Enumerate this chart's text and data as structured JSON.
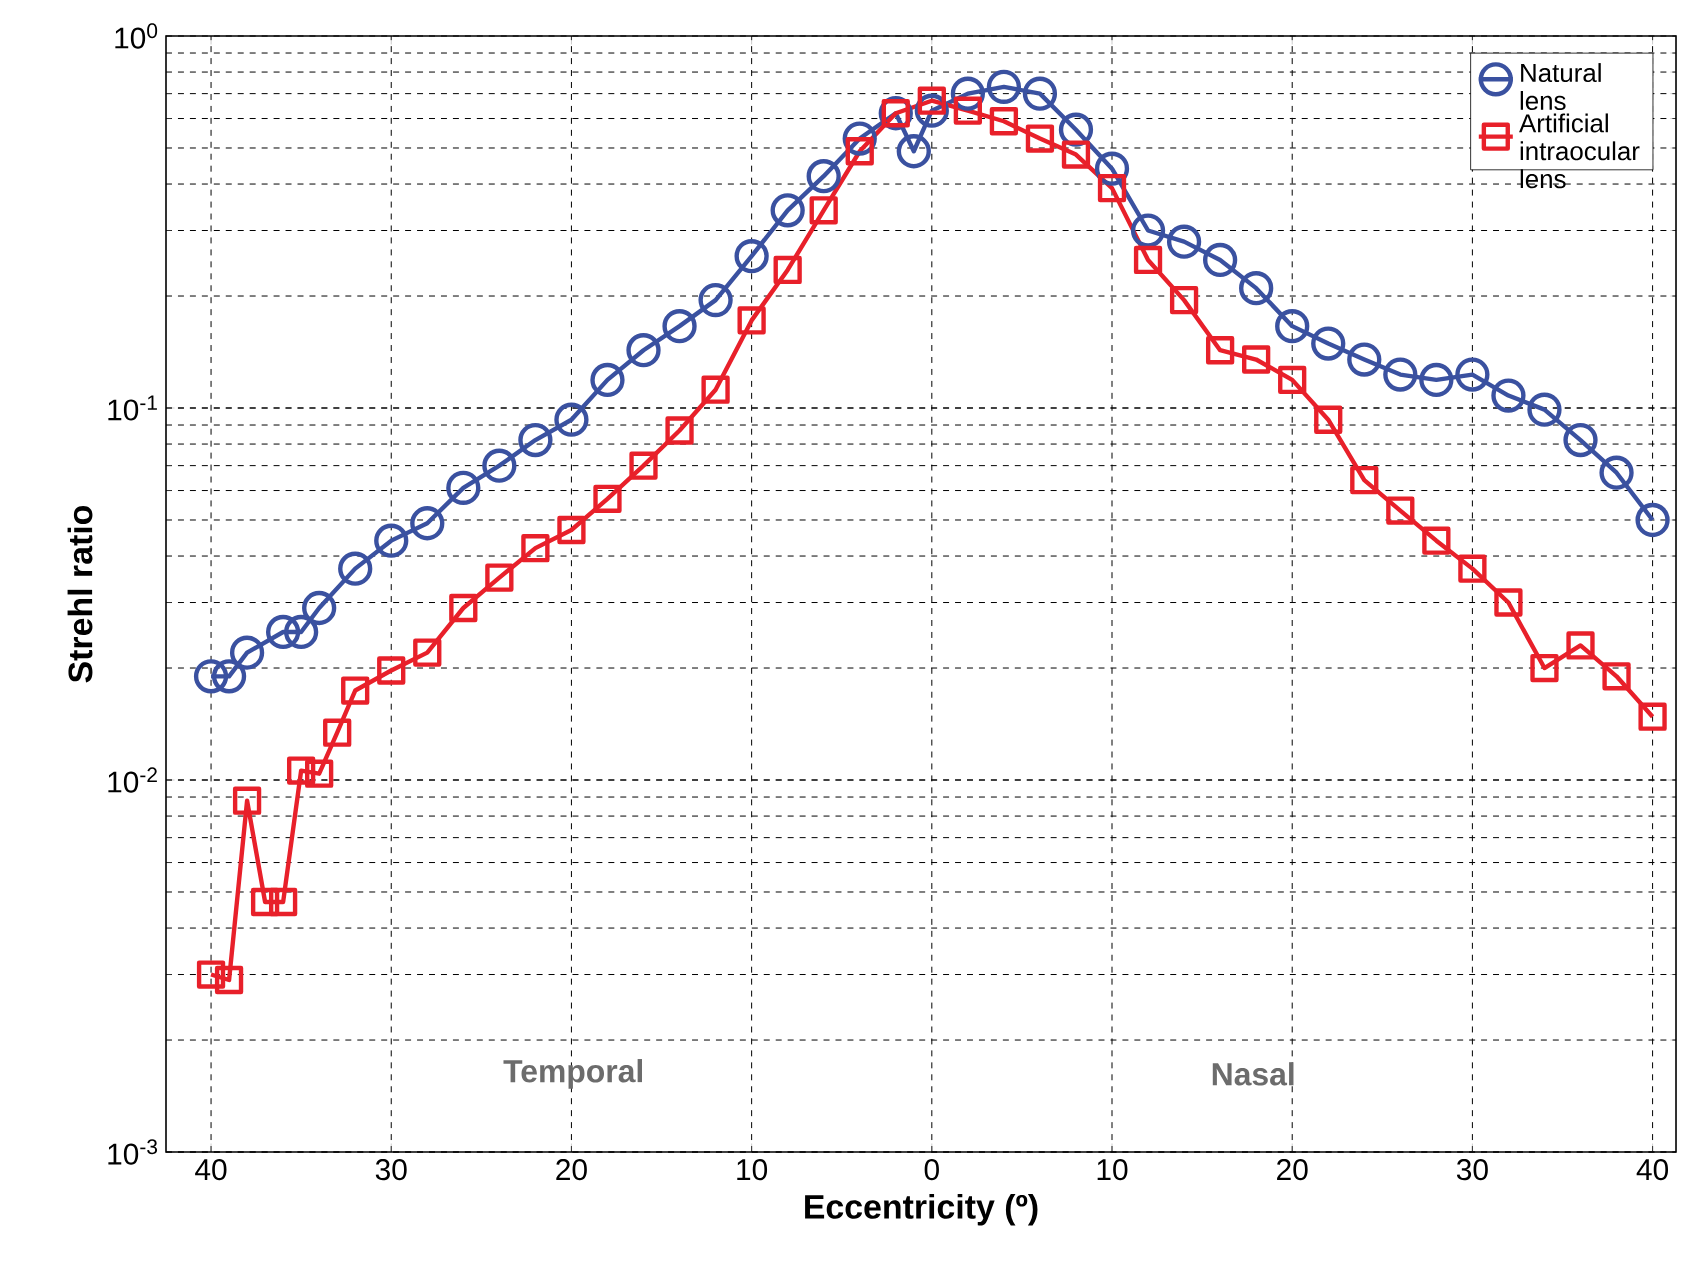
{
  "chart_data": {
    "type": "line",
    "xlabel": "Eccentricity (º)",
    "ylabel": "Strehl ratio",
    "log": "y",
    "grid": true,
    "legend": "top right",
    "xlim": [
      -42.5,
      41.3
    ],
    "ylim": [
      0.001,
      1
    ],
    "xticks": [
      {
        "value": -40,
        "label": "40"
      },
      {
        "value": -30,
        "label": "30"
      },
      {
        "value": -20,
        "label": "20"
      },
      {
        "value": -10,
        "label": "10"
      },
      {
        "value": 0,
        "label": "0"
      },
      {
        "value": 10,
        "label": "10"
      },
      {
        "value": 20,
        "label": "20"
      },
      {
        "value": 30,
        "label": "30"
      },
      {
        "value": 40,
        "label": "40"
      }
    ],
    "yticks": [
      {
        "value": 0.001,
        "label": "10$^{-3}$"
      },
      {
        "value": 0.01,
        "label": "10$^{-2}$"
      },
      {
        "value": 0.1,
        "label": "10$^{-1}$"
      },
      {
        "value": 1,
        "label": "10$^{0}$"
      }
    ],
    "annotations": [
      "Temporal",
      "Nasal"
    ],
    "series": [
      {
        "name": "Natural lens",
        "color": "#3a51a0",
        "marker": "circle",
        "line_style": "solid",
        "x": [
          -40,
          -39,
          -38,
          -36,
          -35,
          -34,
          -32,
          -30,
          -28,
          -26,
          -24,
          -22,
          -20,
          -18,
          -16,
          -14,
          -12,
          -10,
          -8,
          -6,
          -4,
          -2,
          -1,
          0,
          2,
          4,
          6,
          8,
          10,
          12,
          14,
          16,
          18,
          20,
          22,
          24,
          26,
          28,
          30,
          32,
          34,
          36,
          38,
          40
        ],
        "values": [
          0.019,
          0.019,
          0.022,
          0.025,
          0.025,
          0.029,
          0.037,
          0.044,
          0.049,
          0.061,
          0.07,
          0.082,
          0.093,
          0.119,
          0.143,
          0.166,
          0.195,
          0.256,
          0.34,
          0.42,
          0.53,
          0.62,
          0.49,
          0.63,
          0.7,
          0.73,
          0.7,
          0.56,
          0.44,
          0.3,
          0.28,
          0.25,
          0.21,
          0.166,
          0.149,
          0.135,
          0.123,
          0.119,
          0.123,
          0.108,
          0.099,
          0.082,
          0.067,
          0.05
        ]
      },
      {
        "name": "Artificial intraocular lens",
        "color": "#e8202a",
        "marker": "square",
        "line_style": "solid",
        "x": [
          -40,
          -39,
          -38,
          -37,
          -36,
          -35,
          -34,
          -33,
          -32,
          -30,
          -28,
          -26,
          -24,
          -22,
          -20,
          -18,
          -16,
          -14,
          -12,
          -10,
          -8,
          -6,
          -4,
          -2,
          0,
          2,
          4,
          6,
          8,
          10,
          12,
          14,
          16,
          18,
          20,
          22,
          24,
          26,
          28,
          30,
          32,
          34,
          36,
          38,
          40
        ],
        "values": [
          0.003,
          0.0029,
          0.0088,
          0.0047,
          0.0047,
          0.0106,
          0.0104,
          0.0134,
          0.0174,
          0.0197,
          0.022,
          0.029,
          0.035,
          0.042,
          0.047,
          0.057,
          0.07,
          0.087,
          0.112,
          0.172,
          0.235,
          0.34,
          0.49,
          0.62,
          0.67,
          0.63,
          0.59,
          0.53,
          0.48,
          0.39,
          0.25,
          0.195,
          0.143,
          0.135,
          0.119,
          0.093,
          0.064,
          0.053,
          0.044,
          0.037,
          0.03,
          0.02,
          0.023,
          0.019,
          0.0148
        ]
      }
    ]
  }
}
